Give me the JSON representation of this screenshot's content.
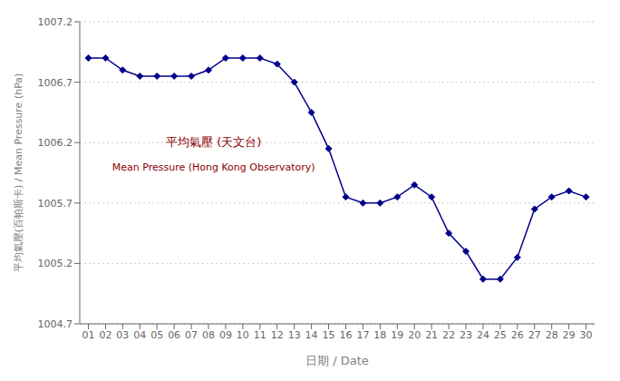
{
  "chart_data": {
    "type": "line",
    "x_label": "日期 / Date",
    "y_label": "平均氣壓(百帕斯卡) / Mean Pressure (hPa)",
    "x": [
      1,
      2,
      3,
      4,
      5,
      6,
      7,
      8,
      9,
      10,
      11,
      12,
      13,
      14,
      15,
      16,
      17,
      18,
      19,
      20,
      21,
      22,
      23,
      24,
      25,
      26,
      27,
      28,
      29,
      30
    ],
    "values": [
      1006.9,
      1006.9,
      1006.8,
      1006.75,
      1006.75,
      1006.75,
      1006.75,
      1006.8,
      1006.9,
      1006.9,
      1006.9,
      1006.85,
      1006.7,
      1006.45,
      1006.15,
      1005.75,
      1005.7,
      1005.7,
      1005.75,
      1005.85,
      1005.75,
      1005.45,
      1005.3,
      1005.07,
      1005.07,
      1005.25,
      1005.65,
      1005.75,
      1005.8,
      1005.75
    ],
    "color": "#00008b",
    "marker": "diamond",
    "xlim": [
      0.5,
      30.5
    ],
    "xticks": [
      {
        "value": 1,
        "label": "01"
      },
      {
        "value": 2,
        "label": "02"
      },
      {
        "value": 3,
        "label": "03"
      },
      {
        "value": 4,
        "label": "04"
      },
      {
        "value": 5,
        "label": "05"
      },
      {
        "value": 6,
        "label": "06"
      },
      {
        "value": 7,
        "label": "07"
      },
      {
        "value": 8,
        "label": "08"
      },
      {
        "value": 9,
        "label": "09"
      },
      10,
      11,
      12,
      13,
      14,
      15,
      16,
      17,
      18,
      19,
      20,
      21,
      22,
      23,
      24,
      25,
      26,
      27,
      28,
      29,
      30
    ],
    "ylim": [
      1004.7,
      1007.2
    ],
    "yticks": [
      1004.7,
      1005.2,
      1005.7,
      1006.2,
      1006.7,
      1007.2
    ],
    "grid": true,
    "annotations": [
      {
        "text": "平均氣壓 (天文台)",
        "color": "#8b0000"
      },
      {
        "text": "Mean Pressure (Hong Kong Observatory)",
        "color": "#8b0000"
      }
    ]
  }
}
